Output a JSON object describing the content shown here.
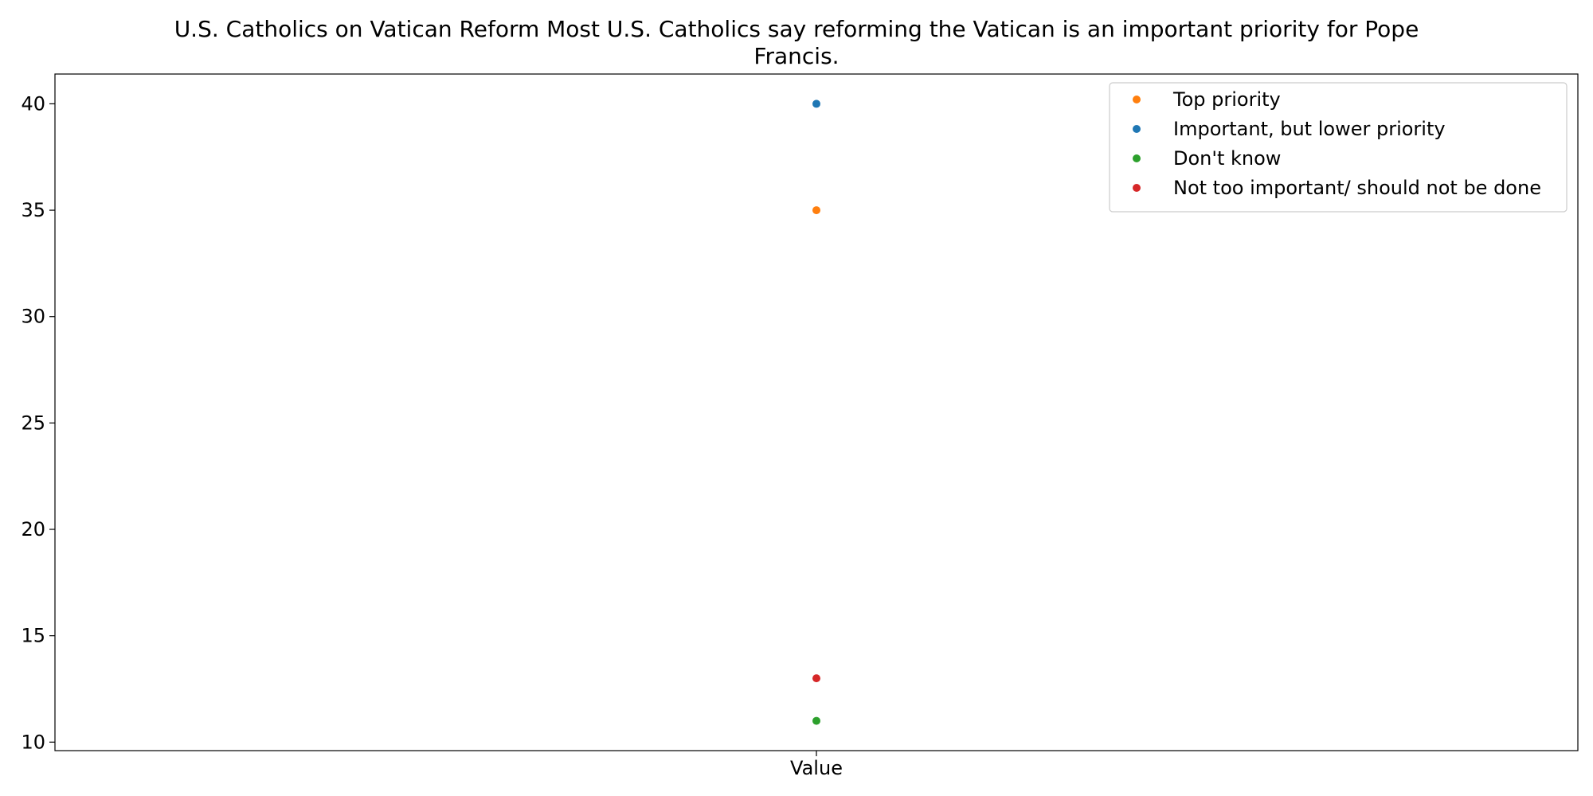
{
  "chart_data": {
    "type": "scatter",
    "title_lines": [
      "U.S. Catholics on Vatican Reform Most U.S. Catholics say reforming the Vatican is an important priority for Pope",
      "Francis."
    ],
    "categories": [
      "Value"
    ],
    "ylim": [
      9.6,
      41.4
    ],
    "yticks": [
      10,
      15,
      20,
      25,
      30,
      35,
      40
    ],
    "grid": false,
    "legend_position": "top-right",
    "series": [
      {
        "name": "Top priority",
        "color": "#ff7f0e",
        "values": [
          35
        ]
      },
      {
        "name": "Important, but lower priority",
        "color": "#1f77b4",
        "values": [
          40
        ]
      },
      {
        "name": "Don't know",
        "color": "#2ca02c",
        "values": [
          11
        ]
      },
      {
        "name": "Not too important/ should not be done",
        "color": "#d62728",
        "values": [
          13
        ]
      }
    ]
  }
}
